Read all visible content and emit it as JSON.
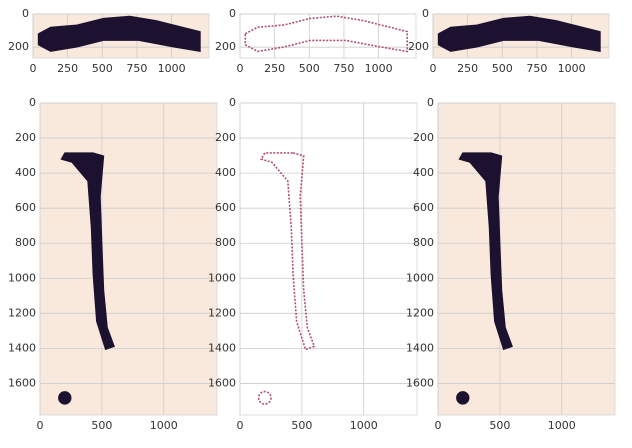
{
  "chart_data": [
    {
      "type": "image",
      "background": "#f9e8dc",
      "mark_color": "#1c1230",
      "grid": true,
      "xlim": [
        0,
        1270
      ],
      "ylim": [
        265,
        0
      ],
      "xticks": [
        0,
        250,
        500,
        750,
        1000
      ],
      "yticks": [
        0,
        200
      ]
    },
    {
      "type": "image",
      "background": "#ffffff",
      "mark_color": "#b04f78",
      "grid": true,
      "xlim": [
        0,
        1270
      ],
      "ylim": [
        265,
        0
      ],
      "xticks": [
        0,
        250,
        500,
        750,
        1000
      ],
      "yticks": [
        0,
        200
      ]
    },
    {
      "type": "image",
      "background": "#f9e8dc",
      "mark_color": "#1c1230",
      "grid": true,
      "xlim": [
        0,
        1270
      ],
      "ylim": [
        265,
        0
      ],
      "xticks": [
        0,
        250,
        500,
        750,
        1000
      ],
      "yticks": [
        0,
        200
      ]
    },
    {
      "type": "image",
      "background": "#f9e8dc",
      "mark_color": "#1c1230",
      "grid": true,
      "xlim": [
        0,
        1430
      ],
      "ylim": [
        1780,
        0
      ],
      "xticks": [
        0,
        500,
        1000
      ],
      "yticks": [
        0,
        200,
        400,
        600,
        800,
        1000,
        1200,
        1400,
        1600
      ]
    },
    {
      "type": "image",
      "background": "#ffffff",
      "mark_color": "#b04f78",
      "grid": true,
      "xlim": [
        0,
        1430
      ],
      "ylim": [
        1780,
        0
      ],
      "xticks": [
        0,
        500,
        1000
      ],
      "yticks": [
        0,
        200,
        400,
        600,
        800,
        1000,
        1200,
        1400,
        1600
      ]
    },
    {
      "type": "image",
      "background": "#f9e8dc",
      "mark_color": "#1c1230",
      "grid": true,
      "xlim": [
        0,
        1430
      ],
      "ylim": [
        1780,
        0
      ],
      "xticks": [
        0,
        500,
        1000
      ],
      "yticks": [
        0,
        200,
        400,
        600,
        800,
        1000,
        1200,
        1400,
        1600
      ]
    }
  ]
}
